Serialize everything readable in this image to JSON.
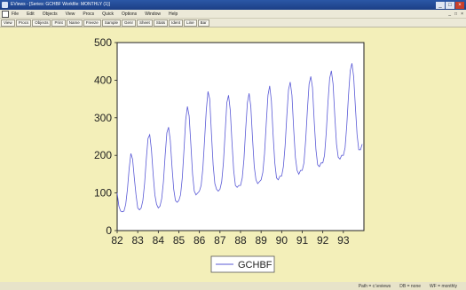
{
  "window": {
    "title": "EViews - [Series: GCHBF   Workfile: MONTHLY (1)]",
    "controls": [
      "_",
      "□",
      "×"
    ]
  },
  "menu": {
    "items": [
      "File",
      "Edit",
      "Objects",
      "View",
      "Procs",
      "Quick",
      "Options",
      "Window",
      "Help"
    ],
    "right_controls": [
      "_",
      "□",
      "×"
    ]
  },
  "toolbar": {
    "buttons": [
      "View",
      "Procs",
      "Objects",
      "Print",
      "Name",
      "Freeze",
      "Sample",
      "Genr",
      "Sheet",
      "Stats",
      "Ident",
      "Line",
      "Bar"
    ]
  },
  "status": {
    "items": [
      "Path = c:\\eviews",
      "DB = none",
      "WF = monthly"
    ]
  },
  "chart_data": {
    "type": "line",
    "title": "",
    "xlabel": "",
    "ylabel": "",
    "ylim": [
      0,
      500
    ],
    "yticks": [
      0,
      100,
      200,
      300,
      400,
      500
    ],
    "xticks": [
      "82",
      "83",
      "84",
      "85",
      "86",
      "87",
      "88",
      "89",
      "90",
      "91",
      "92",
      "93"
    ],
    "x_start": 1982,
    "x_end": 1994,
    "grid": false,
    "legend": "bottom-center",
    "line_color": "#5a5ad6",
    "series": [
      {
        "name": "GCHBF",
        "values": [
          100,
          65,
          52,
          50,
          52,
          70,
          110,
          165,
          205,
          190,
          140,
          95,
          60,
          55,
          60,
          80,
          125,
          190,
          245,
          255,
          215,
          150,
          95,
          70,
          60,
          65,
          85,
          130,
          200,
          260,
          275,
          240,
          170,
          110,
          80,
          75,
          80,
          95,
          140,
          215,
          295,
          330,
          305,
          230,
          150,
          105,
          95,
          100,
          105,
          120,
          165,
          240,
          320,
          370,
          350,
          260,
          175,
          125,
          110,
          105,
          110,
          130,
          180,
          260,
          340,
          360,
          320,
          235,
          160,
          120,
          115,
          120,
          120,
          140,
          190,
          270,
          340,
          365,
          330,
          245,
          170,
          135,
          125,
          130,
          135,
          155,
          205,
          285,
          360,
          385,
          345,
          255,
          180,
          140,
          135,
          145,
          145,
          170,
          225,
          305,
          375,
          395,
          360,
          270,
          195,
          160,
          150,
          160,
          160,
          180,
          240,
          320,
          390,
          410,
          380,
          290,
          215,
          175,
          170,
          180,
          180,
          200,
          260,
          340,
          405,
          425,
          390,
          305,
          230,
          195,
          190,
          200,
          200,
          220,
          280,
          360,
          425,
          445,
          410,
          330,
          255,
          215,
          215,
          230
        ]
      }
    ]
  }
}
